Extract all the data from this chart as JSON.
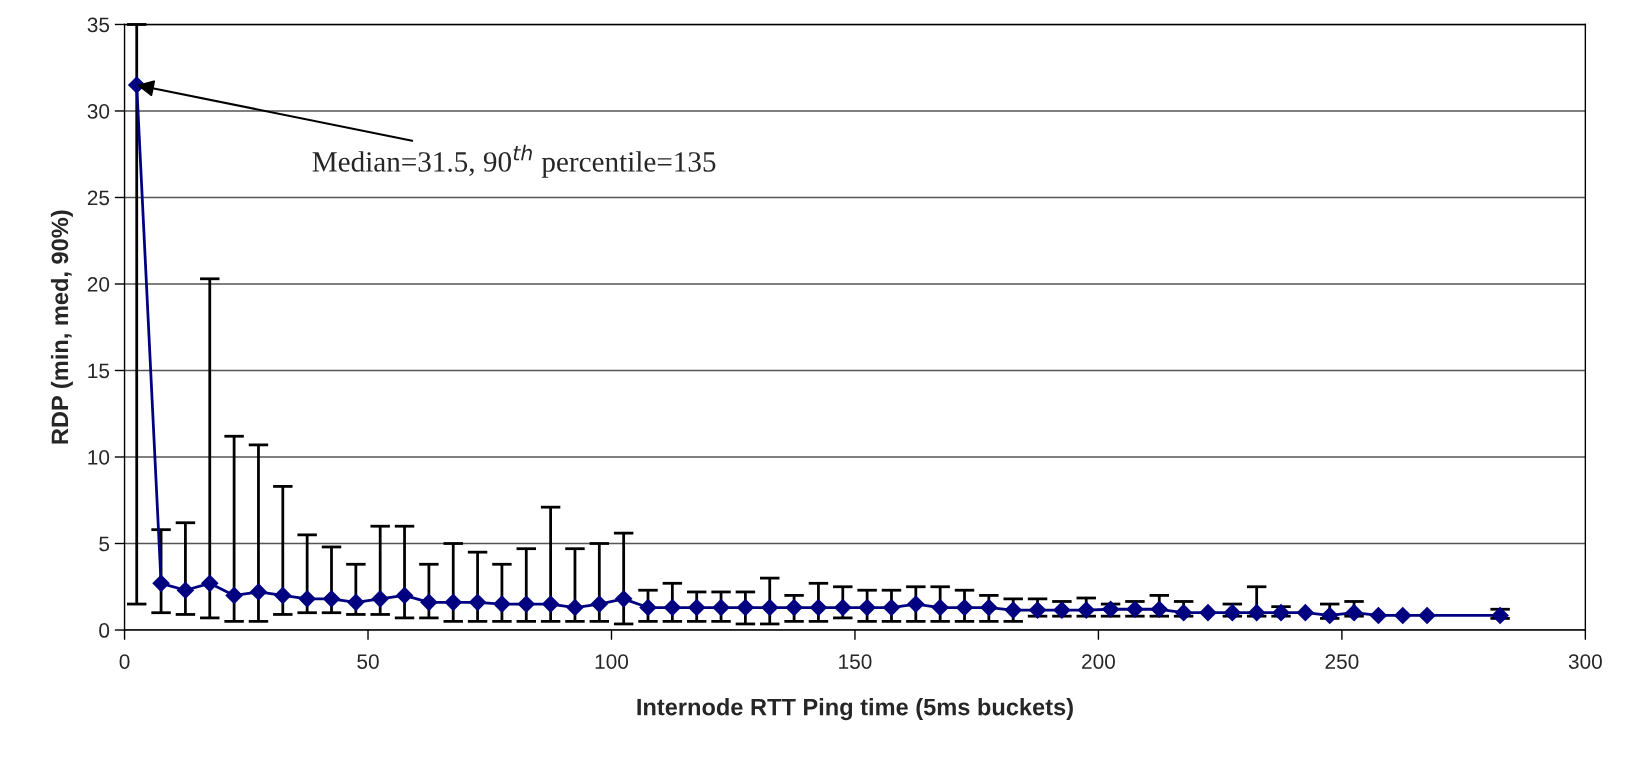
{
  "chart_data": {
    "type": "line",
    "xlabel": "Internode RTT Ping time (5ms buckets)",
    "ylabel": "RDP (min, med, 90%)",
    "x": [
      2.5,
      7.5,
      12.5,
      17.5,
      22.5,
      27.5,
      32.5,
      37.5,
      42.5,
      47.5,
      52.5,
      57.5,
      62.5,
      67.5,
      72.5,
      77.5,
      82.5,
      87.5,
      92.5,
      97.5,
      102.5,
      107.5,
      112.5,
      117.5,
      122.5,
      127.5,
      132.5,
      137.5,
      142.5,
      147.5,
      152.5,
      157.5,
      162.5,
      167.5,
      172.5,
      177.5,
      182.5,
      187.5,
      192.5,
      197.5,
      202.5,
      207.5,
      212.5,
      217.5,
      222.5,
      227.5,
      232.5,
      237.5,
      242.5,
      247.5,
      252.5,
      257.5,
      262.5,
      267.5,
      282.5
    ],
    "series": [
      {
        "color": "#000080",
        "values": [
          31.5,
          2.7,
          2.3,
          2.7,
          2.0,
          2.2,
          2.0,
          1.8,
          1.8,
          1.6,
          1.8,
          2.0,
          1.6,
          1.6,
          1.6,
          1.5,
          1.5,
          1.5,
          1.3,
          1.5,
          1.8,
          1.3,
          1.3,
          1.3,
          1.3,
          1.3,
          1.3,
          1.3,
          1.3,
          1.3,
          1.3,
          1.3,
          1.5,
          1.3,
          1.3,
          1.3,
          1.15,
          1.15,
          1.15,
          1.15,
          1.2,
          1.2,
          1.2,
          1.0,
          1.0,
          1.0,
          1.0,
          1.0,
          1.0,
          0.84,
          1.0,
          0.84,
          0.84,
          0.84,
          0.84
        ],
        "errors": [
          [
            1.5,
            35
          ],
          [
            1.0,
            5.8
          ],
          [
            0.9,
            6.2
          ],
          [
            0.7,
            20.3
          ],
          [
            0.5,
            11.2
          ],
          [
            0.5,
            10.7
          ],
          [
            0.9,
            8.3
          ],
          [
            1.0,
            5.5
          ],
          [
            1.0,
            4.8
          ],
          [
            0.9,
            3.8
          ],
          [
            0.9,
            6.0
          ],
          [
            0.7,
            6.0
          ],
          [
            0.7,
            3.8
          ],
          [
            0.5,
            5.0
          ],
          [
            0.5,
            4.5
          ],
          [
            0.5,
            3.8
          ],
          [
            0.5,
            4.7
          ],
          [
            0.5,
            7.1
          ],
          [
            0.5,
            4.7
          ],
          [
            0.5,
            5.0
          ],
          [
            0.35,
            5.6
          ],
          [
            0.5,
            2.3
          ],
          [
            0.5,
            2.7
          ],
          [
            0.5,
            2.2
          ],
          [
            0.5,
            2.2
          ],
          [
            0.35,
            2.2
          ],
          [
            0.35,
            3.0
          ],
          [
            0.5,
            2.0
          ],
          [
            0.5,
            2.7
          ],
          [
            0.7,
            2.5
          ],
          [
            0.5,
            2.3
          ],
          [
            0.5,
            2.3
          ],
          [
            0.5,
            2.5
          ],
          [
            0.5,
            2.5
          ],
          [
            0.5,
            2.3
          ],
          [
            0.5,
            2.0
          ],
          [
            0.5,
            1.8
          ],
          [
            0.8,
            1.8
          ],
          [
            0.8,
            1.65
          ],
          [
            0.8,
            1.85
          ],
          [
            0.8,
            1.5
          ],
          [
            0.8,
            1.65
          ],
          [
            0.8,
            2.0
          ],
          [
            0.8,
            1.65
          ],
          null,
          [
            0.8,
            1.5
          ],
          [
            0.8,
            2.5
          ],
          [
            0.8,
            1.35
          ],
          null,
          [
            0.67,
            1.5
          ],
          [
            0.8,
            1.65
          ],
          null,
          null,
          null,
          [
            0.67,
            1.2
          ]
        ]
      }
    ],
    "xlim": [
      0,
      300
    ],
    "xticks": [
      0,
      50,
      100,
      150,
      200,
      250,
      300
    ],
    "ylim": [
      0,
      35
    ],
    "yticks": [
      0,
      5,
      10,
      15,
      20,
      25,
      30,
      35
    ],
    "grid": "y",
    "marker": "diamond",
    "line_style": "solid",
    "legend": false,
    "annotations": [
      {
        "text": "Median=31.5, 90$^{th}$ percentile=135",
        "x": 2.5,
        "y": 31.5
      }
    ]
  }
}
